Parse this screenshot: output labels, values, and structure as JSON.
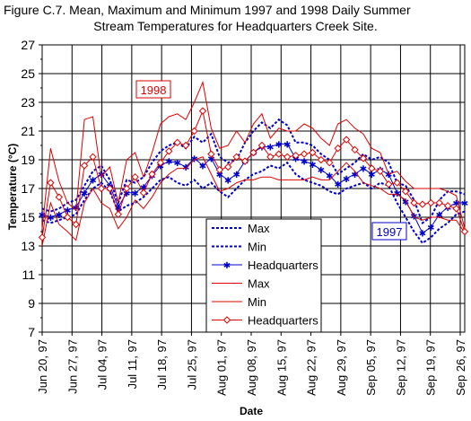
{
  "figure": {
    "title_line1": "Figure C.7.  Mean, Maximum and Minimum 1997 and 1998 Daily Summer",
    "title_line2": "Stream Temperatures for Headquarters Creek Site.",
    "ylabel": "Temperature (°C)",
    "xlabel": "Date",
    "annotation_1998": "1998",
    "annotation_1997": "1997"
  },
  "colors": {
    "y1997": "#0000cc",
    "y1998": "#dd0000",
    "grid": "#000000",
    "plot_bg": "#ffffff"
  },
  "legend": [
    {
      "label": "Max",
      "year": "1997",
      "style": "dash"
    },
    {
      "label": "Min",
      "year": "1997",
      "style": "dash"
    },
    {
      "label": "Headquarters",
      "year": "1997",
      "style": "star"
    },
    {
      "label": "Max",
      "year": "1998",
      "style": "solid"
    },
    {
      "label": "Min",
      "year": "1998",
      "style": "solid"
    },
    {
      "label": "Headquarters",
      "year": "1998",
      "style": "diamond"
    }
  ],
  "chart_data": {
    "type": "line",
    "title": "Figure C.7.  Mean, Maximum and Minimum 1997 and 1998 Daily Summer Stream Temperatures for Headquarters Creek Site.",
    "xlabel": "Date",
    "ylabel": "Temperature (°C)",
    "ylim": [
      7,
      27
    ],
    "yticks": [
      7,
      9,
      11,
      13,
      15,
      17,
      19,
      21,
      23,
      25,
      27
    ],
    "x_tick_labels": [
      "Jun 20, 97",
      "Jun 27, 97",
      "Jul 04, 97",
      "Jul 11, 97",
      "Jul 18, 97",
      "Jul 25, 97",
      "Aug 01, 97",
      "Aug 08, 97",
      "Aug 15, 97",
      "Aug 22, 97",
      "Aug 29, 97",
      "Sep 05, 97",
      "Sep 12, 97",
      "Sep 19, 97",
      "Sep 26, 97"
    ],
    "grid": true,
    "legend_position": "center-bottom",
    "x_dates": [
      "Jun 20",
      "Jun 22",
      "Jun 24",
      "Jun 26",
      "Jun 28",
      "Jun 30",
      "Jul 02",
      "Jul 04",
      "Jul 06",
      "Jul 08",
      "Jul 10",
      "Jul 12",
      "Jul 14",
      "Jul 16",
      "Jul 18",
      "Jul 20",
      "Jul 22",
      "Jul 24",
      "Jul 26",
      "Jul 28",
      "Jul 30",
      "Aug 01",
      "Aug 03",
      "Aug 05",
      "Aug 07",
      "Aug 09",
      "Aug 11",
      "Aug 13",
      "Aug 15",
      "Aug 17",
      "Aug 19",
      "Aug 21",
      "Aug 23",
      "Aug 25",
      "Aug 27",
      "Aug 29",
      "Aug 31",
      "Sep 02",
      "Sep 04",
      "Sep 06",
      "Sep 08",
      "Sep 10",
      "Sep 12",
      "Sep 14",
      "Sep 16",
      "Sep 18",
      "Sep 20",
      "Sep 22",
      "Sep 24",
      "Sep 26",
      "Sep 27"
    ],
    "series": [
      {
        "name": "Max",
        "year": "1997",
        "style": "dash",
        "values": [
          15.6,
          15.4,
          15.6,
          16.0,
          16.2,
          17.2,
          18.2,
          18.6,
          17.6,
          16.0,
          17.6,
          17.4,
          17.8,
          18.8,
          19.6,
          20.0,
          20.2,
          19.8,
          20.6,
          20.2,
          20.8,
          19.2,
          18.8,
          19.0,
          20.2,
          21.0,
          21.6,
          21.2,
          21.8,
          21.4,
          20.2,
          20.2,
          20.0,
          19.4,
          19.0,
          18.0,
          18.4,
          18.8,
          19.4,
          19.0,
          19.2,
          18.8,
          17.4,
          17.2,
          16.2,
          14.6,
          15.0,
          16.2,
          16.8,
          16.8,
          16.6
        ]
      },
      {
        "name": "Min",
        "year": "1997",
        "style": "dash",
        "values": [
          14.8,
          14.6,
          14.8,
          15.0,
          15.2,
          16.2,
          17.0,
          17.4,
          16.8,
          15.4,
          15.8,
          16.0,
          16.4,
          17.0,
          17.6,
          17.8,
          17.4,
          17.2,
          17.6,
          17.0,
          17.4,
          16.8,
          16.4,
          17.0,
          17.6,
          18.0,
          18.2,
          18.6,
          18.4,
          18.8,
          18.0,
          17.6,
          17.4,
          17.2,
          16.8,
          16.6,
          17.0,
          17.2,
          17.4,
          17.0,
          17.4,
          17.2,
          16.0,
          15.0,
          14.0,
          13.2,
          13.6,
          14.2,
          14.6,
          15.2,
          15.4
        ]
      },
      {
        "name": "Headquarters",
        "year": "1997",
        "style": "star",
        "values": [
          15.2,
          15.0,
          15.2,
          15.5,
          15.7,
          16.7,
          17.6,
          18.0,
          17.2,
          15.7,
          16.7,
          16.7,
          17.1,
          17.9,
          18.6,
          18.9,
          18.8,
          18.5,
          19.1,
          18.6,
          19.1,
          18.0,
          17.6,
          18.0,
          18.9,
          19.5,
          19.9,
          19.9,
          20.1,
          20.1,
          19.1,
          18.9,
          18.7,
          18.3,
          17.9,
          17.3,
          17.7,
          18.0,
          18.4,
          18.0,
          18.3,
          18.0,
          16.7,
          16.1,
          15.1,
          13.9,
          14.3,
          15.2,
          15.7,
          16.0,
          16.0
        ]
      },
      {
        "name": "Max",
        "year": "1998",
        "style": "solid",
        "values": [
          14.2,
          19.8,
          17.5,
          16.0,
          15.5,
          21.8,
          22.0,
          17.8,
          18.5,
          16.0,
          19.0,
          19.5,
          17.8,
          19.5,
          21.5,
          22.0,
          22.2,
          21.8,
          23.0,
          24.4,
          21.2,
          19.8,
          20.0,
          21.0,
          20.2,
          21.5,
          22.2,
          20.5,
          21.2,
          21.0,
          21.0,
          21.5,
          21.2,
          20.5,
          20.0,
          21.5,
          21.8,
          21.2,
          20.8,
          19.8,
          19.5,
          18.0,
          18.2,
          17.5,
          17.0,
          17.0,
          17.0,
          17.0,
          16.8,
          16.5,
          14.2
        ]
      },
      {
        "name": "Min",
        "year": "1998",
        "style": "solid",
        "values": [
          13.0,
          16.0,
          14.5,
          14.0,
          13.4,
          16.0,
          17.0,
          16.0,
          15.6,
          14.2,
          15.0,
          16.2,
          15.6,
          16.4,
          17.4,
          18.0,
          18.4,
          18.4,
          19.0,
          19.2,
          18.0,
          16.8,
          17.0,
          17.4,
          17.6,
          17.6,
          17.8,
          17.8,
          17.6,
          17.6,
          17.6,
          17.6,
          17.8,
          17.6,
          17.6,
          18.2,
          18.8,
          18.2,
          17.4,
          17.2,
          17.0,
          16.6,
          16.6,
          16.2,
          15.0,
          14.8,
          15.0,
          15.0,
          14.8,
          14.8,
          13.9
        ]
      },
      {
        "name": "Headquarters",
        "year": "1998",
        "style": "diamond",
        "values": [
          13.6,
          17.4,
          16.4,
          15.0,
          14.5,
          18.6,
          19.2,
          17.0,
          17.0,
          15.2,
          17.0,
          17.8,
          16.7,
          18.0,
          18.8,
          19.6,
          20.2,
          20.0,
          21.0,
          22.4,
          19.4,
          18.3,
          18.5,
          19.2,
          18.9,
          19.5,
          20.0,
          19.2,
          19.4,
          19.2,
          19.3,
          19.4,
          19.5,
          19.0,
          18.8,
          19.8,
          20.4,
          19.7,
          19.1,
          18.4,
          18.2,
          17.3,
          17.4,
          16.8,
          16.0,
          15.9,
          16.0,
          16.0,
          15.8,
          15.6,
          14.0
        ]
      }
    ]
  }
}
